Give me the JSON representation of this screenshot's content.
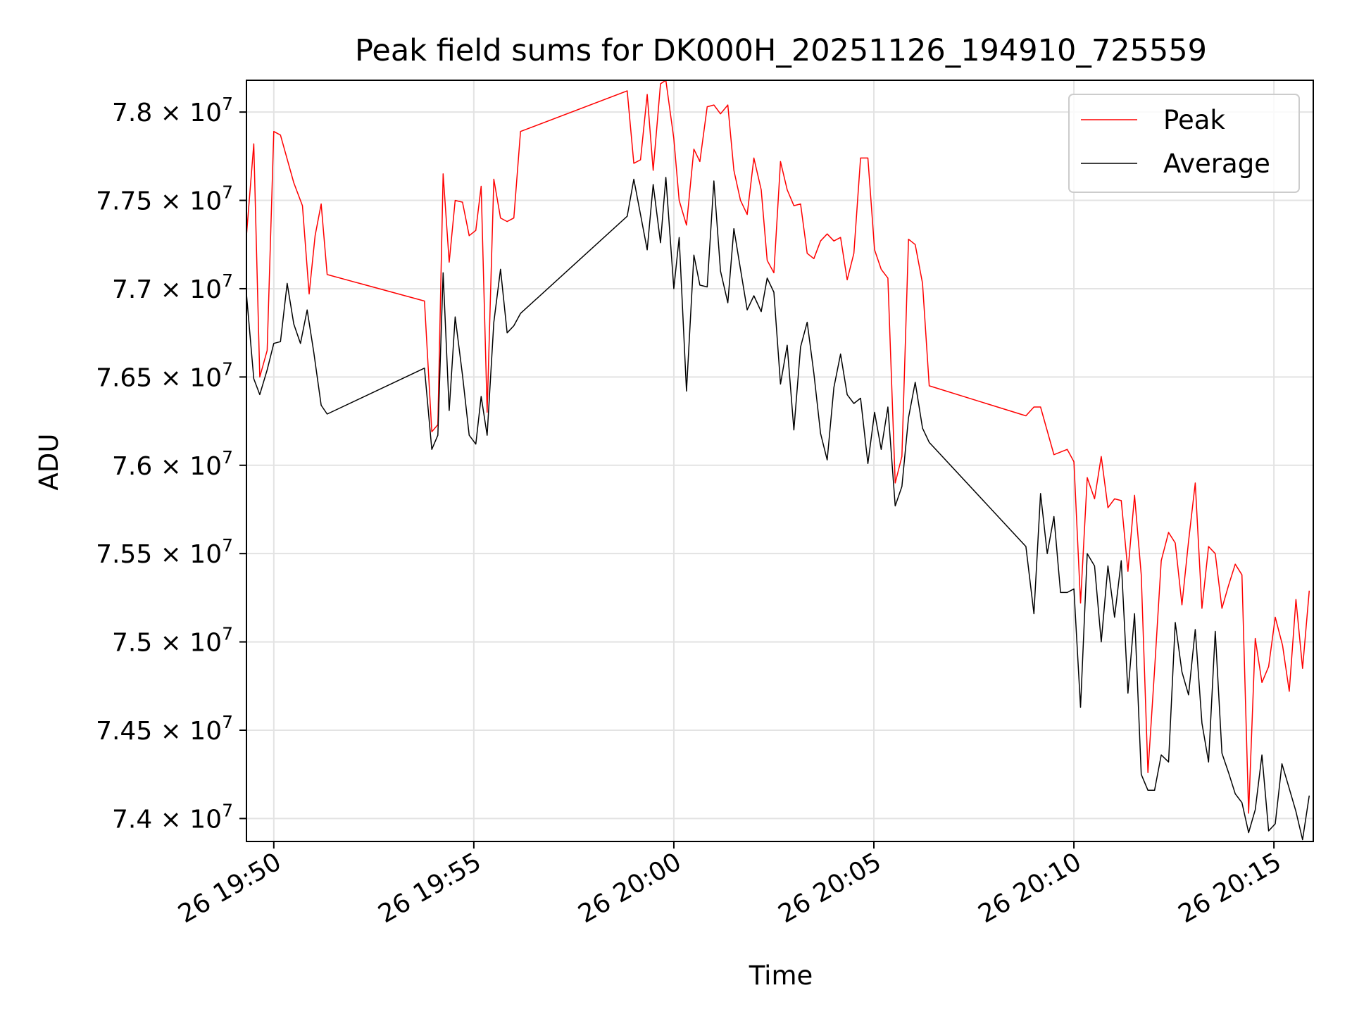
{
  "chart_data": {
    "type": "line",
    "title": "Peak field sums for DK000H_20251126_194910_725559",
    "xlabel": "Time",
    "ylabel": "ADU",
    "x_unit": "time of day (day 26)",
    "xlim": [
      "19:49:19",
      "20:15:59"
    ],
    "ylim": [
      73870000,
      78180000
    ],
    "grid": true,
    "legend_position": "top-right",
    "x_ticks": [
      {
        "t": "19:50:00",
        "label": "26 19:50"
      },
      {
        "t": "19:55:00",
        "label": "26 19:55"
      },
      {
        "t": "20:00:00",
        "label": "26 20:00"
      },
      {
        "t": "20:05:00",
        "label": "26 20:05"
      },
      {
        "t": "20:10:00",
        "label": "26 20:10"
      },
      {
        "t": "20:15:00",
        "label": "26 20:15"
      }
    ],
    "y_ticks": [
      {
        "v": 74000000,
        "mant": "7.4",
        "exp": "7"
      },
      {
        "v": 74500000,
        "mant": "7.45",
        "exp": "7"
      },
      {
        "v": 75000000,
        "mant": "7.5",
        "exp": "7"
      },
      {
        "v": 75500000,
        "mant": "7.55",
        "exp": "7"
      },
      {
        "v": 76000000,
        "mant": "7.6",
        "exp": "7"
      },
      {
        "v": 76500000,
        "mant": "7.65",
        "exp": "7"
      },
      {
        "v": 77000000,
        "mant": "7.7",
        "exp": "7"
      },
      {
        "v": 77500000,
        "mant": "7.75",
        "exp": "7"
      },
      {
        "v": 78000000,
        "mant": "7.8",
        "exp": "7"
      }
    ],
    "times_symbol": "×",
    "base": "10",
    "series": [
      {
        "name": "Peak",
        "color": "#ff0000",
        "points": [
          [
            "19:49:19",
            77300000
          ],
          [
            "19:49:30",
            77820000
          ],
          [
            "19:49:39",
            76500000
          ],
          [
            "19:49:50",
            76650000
          ],
          [
            "19:50:00",
            77890000
          ],
          [
            "19:50:10",
            77870000
          ],
          [
            "19:50:30",
            77600000
          ],
          [
            "19:50:43",
            77470000
          ],
          [
            "19:50:53",
            76970000
          ],
          [
            "19:51:02",
            77300000
          ],
          [
            "19:51:11",
            77480000
          ],
          [
            "19:51:20",
            77080000
          ],
          [
            "19:53:46",
            76930000
          ],
          [
            "19:53:57",
            76190000
          ],
          [
            "19:54:06",
            76230000
          ],
          [
            "19:54:14",
            77650000
          ],
          [
            "19:54:23",
            77150000
          ],
          [
            "19:54:32",
            77500000
          ],
          [
            "19:54:43",
            77490000
          ],
          [
            "19:54:53",
            77300000
          ],
          [
            "19:55:03",
            77330000
          ],
          [
            "19:55:11",
            77580000
          ],
          [
            "19:55:20",
            76300000
          ],
          [
            "19:55:30",
            77620000
          ],
          [
            "19:55:40",
            77400000
          ],
          [
            "19:55:50",
            77380000
          ],
          [
            "19:56:00",
            77400000
          ],
          [
            "19:56:10",
            77890000
          ],
          [
            "19:58:50",
            78120000
          ],
          [
            "19:59:00",
            77710000
          ],
          [
            "19:59:10",
            77730000
          ],
          [
            "19:59:20",
            78100000
          ],
          [
            "19:59:29",
            77670000
          ],
          [
            "19:59:40",
            78160000
          ],
          [
            "19:59:48",
            78180000
          ],
          [
            "20:00:00",
            77850000
          ],
          [
            "20:00:08",
            77500000
          ],
          [
            "20:00:19",
            77360000
          ],
          [
            "20:00:30",
            77790000
          ],
          [
            "20:00:39",
            77720000
          ],
          [
            "20:00:50",
            78030000
          ],
          [
            "20:01:00",
            78040000
          ],
          [
            "20:01:10",
            77990000
          ],
          [
            "20:01:21",
            78040000
          ],
          [
            "20:01:30",
            77670000
          ],
          [
            "20:01:40",
            77500000
          ],
          [
            "20:01:50",
            77420000
          ],
          [
            "20:02:00",
            77740000
          ],
          [
            "20:02:11",
            77560000
          ],
          [
            "20:02:20",
            77160000
          ],
          [
            "20:02:30",
            77090000
          ],
          [
            "20:02:40",
            77720000
          ],
          [
            "20:02:50",
            77560000
          ],
          [
            "20:03:00",
            77470000
          ],
          [
            "20:03:10",
            77480000
          ],
          [
            "20:03:20",
            77200000
          ],
          [
            "20:03:30",
            77170000
          ],
          [
            "20:03:40",
            77270000
          ],
          [
            "20:03:50",
            77310000
          ],
          [
            "20:04:00",
            77270000
          ],
          [
            "20:04:10",
            77290000
          ],
          [
            "20:04:20",
            77050000
          ],
          [
            "20:04:30",
            77200000
          ],
          [
            "20:04:40",
            77740000
          ],
          [
            "20:04:51",
            77740000
          ],
          [
            "20:05:01",
            77220000
          ],
          [
            "20:05:11",
            77110000
          ],
          [
            "20:05:21",
            77060000
          ],
          [
            "20:05:32",
            75900000
          ],
          [
            "20:05:42",
            76050000
          ],
          [
            "20:05:52",
            77280000
          ],
          [
            "20:06:02",
            77250000
          ],
          [
            "20:06:13",
            77030000
          ],
          [
            "20:06:23",
            76450000
          ],
          [
            "20:08:48",
            76280000
          ],
          [
            "20:09:00",
            76330000
          ],
          [
            "20:09:10",
            76330000
          ],
          [
            "20:09:30",
            76060000
          ],
          [
            "20:09:50",
            76090000
          ],
          [
            "20:10:00",
            76020000
          ],
          [
            "20:10:10",
            75220000
          ],
          [
            "20:10:20",
            75930000
          ],
          [
            "20:10:31",
            75810000
          ],
          [
            "20:10:41",
            76050000
          ],
          [
            "20:10:51",
            75760000
          ],
          [
            "20:11:01",
            75810000
          ],
          [
            "20:11:11",
            75800000
          ],
          [
            "20:11:21",
            75400000
          ],
          [
            "20:11:31",
            75830000
          ],
          [
            "20:11:41",
            75380000
          ],
          [
            "20:11:51",
            74260000
          ],
          [
            "20:12:01",
            74840000
          ],
          [
            "20:12:11",
            75460000
          ],
          [
            "20:12:22",
            75620000
          ],
          [
            "20:12:32",
            75560000
          ],
          [
            "20:12:42",
            75210000
          ],
          [
            "20:12:52",
            75570000
          ],
          [
            "20:13:02",
            75900000
          ],
          [
            "20:13:12",
            75190000
          ],
          [
            "20:13:22",
            75540000
          ],
          [
            "20:13:32",
            75500000
          ],
          [
            "20:13:42",
            75190000
          ],
          [
            "20:13:52",
            75320000
          ],
          [
            "20:14:02",
            75440000
          ],
          [
            "20:14:12",
            75380000
          ],
          [
            "20:14:22",
            74030000
          ],
          [
            "20:14:32",
            75020000
          ],
          [
            "20:14:42",
            74770000
          ],
          [
            "20:14:52",
            74860000
          ],
          [
            "20:15:02",
            75140000
          ],
          [
            "20:15:13",
            74980000
          ],
          [
            "20:15:23",
            74720000
          ],
          [
            "20:15:33",
            75240000
          ],
          [
            "20:15:43",
            74850000
          ],
          [
            "20:15:53",
            75290000
          ]
        ]
      },
      {
        "name": "Average",
        "color": "#000000",
        "points": [
          [
            "19:49:19",
            76970000
          ],
          [
            "19:49:30",
            76490000
          ],
          [
            "19:49:39",
            76400000
          ],
          [
            "19:49:50",
            76540000
          ],
          [
            "19:50:00",
            76690000
          ],
          [
            "19:50:10",
            76700000
          ],
          [
            "19:50:20",
            77030000
          ],
          [
            "19:50:30",
            76800000
          ],
          [
            "19:50:40",
            76690000
          ],
          [
            "19:50:50",
            76880000
          ],
          [
            "19:51:00",
            76640000
          ],
          [
            "19:51:11",
            76340000
          ],
          [
            "19:51:20",
            76290000
          ],
          [
            "19:53:46",
            76550000
          ],
          [
            "19:53:57",
            76090000
          ],
          [
            "19:54:06",
            76170000
          ],
          [
            "19:54:14",
            77090000
          ],
          [
            "19:54:23",
            76310000
          ],
          [
            "19:54:32",
            76840000
          ],
          [
            "19:54:43",
            76510000
          ],
          [
            "19:54:53",
            76170000
          ],
          [
            "19:55:03",
            76120000
          ],
          [
            "19:55:11",
            76390000
          ],
          [
            "19:55:20",
            76170000
          ],
          [
            "19:55:30",
            76810000
          ],
          [
            "19:55:40",
            77110000
          ],
          [
            "19:55:50",
            76750000
          ],
          [
            "19:56:00",
            76790000
          ],
          [
            "19:56:10",
            76860000
          ],
          [
            "19:58:50",
            77410000
          ],
          [
            "19:59:00",
            77620000
          ],
          [
            "19:59:10",
            77420000
          ],
          [
            "19:59:20",
            77220000
          ],
          [
            "19:59:29",
            77590000
          ],
          [
            "19:59:40",
            77260000
          ],
          [
            "19:59:48",
            77630000
          ],
          [
            "20:00:00",
            77000000
          ],
          [
            "20:00:08",
            77290000
          ],
          [
            "20:00:19",
            76420000
          ],
          [
            "20:00:30",
            77190000
          ],
          [
            "20:00:39",
            77020000
          ],
          [
            "20:00:50",
            77010000
          ],
          [
            "20:01:00",
            77610000
          ],
          [
            "20:01:10",
            77100000
          ],
          [
            "20:01:21",
            76920000
          ],
          [
            "20:01:30",
            77340000
          ],
          [
            "20:01:40",
            77110000
          ],
          [
            "20:01:50",
            76880000
          ],
          [
            "20:02:00",
            76960000
          ],
          [
            "20:02:11",
            76870000
          ],
          [
            "20:02:20",
            77060000
          ],
          [
            "20:02:30",
            76980000
          ],
          [
            "20:02:40",
            76460000
          ],
          [
            "20:02:50",
            76680000
          ],
          [
            "20:03:00",
            76200000
          ],
          [
            "20:03:10",
            76670000
          ],
          [
            "20:03:20",
            76810000
          ],
          [
            "20:03:30",
            76520000
          ],
          [
            "20:03:40",
            76180000
          ],
          [
            "20:03:50",
            76030000
          ],
          [
            "20:04:00",
            76440000
          ],
          [
            "20:04:10",
            76630000
          ],
          [
            "20:04:20",
            76400000
          ],
          [
            "20:04:30",
            76350000
          ],
          [
            "20:04:40",
            76380000
          ],
          [
            "20:04:51",
            76010000
          ],
          [
            "20:05:01",
            76300000
          ],
          [
            "20:05:11",
            76090000
          ],
          [
            "20:05:21",
            76330000
          ],
          [
            "20:05:32",
            75770000
          ],
          [
            "20:05:42",
            75880000
          ],
          [
            "20:05:52",
            76270000
          ],
          [
            "20:06:02",
            76470000
          ],
          [
            "20:06:13",
            76210000
          ],
          [
            "20:06:23",
            76130000
          ],
          [
            "20:08:48",
            75540000
          ],
          [
            "20:09:00",
            75160000
          ],
          [
            "20:09:10",
            75840000
          ],
          [
            "20:09:20",
            75500000
          ],
          [
            "20:09:30",
            75710000
          ],
          [
            "20:09:40",
            75280000
          ],
          [
            "20:09:50",
            75280000
          ],
          [
            "20:10:00",
            75300000
          ],
          [
            "20:10:10",
            74630000
          ],
          [
            "20:10:20",
            75500000
          ],
          [
            "20:10:31",
            75430000
          ],
          [
            "20:10:41",
            75000000
          ],
          [
            "20:10:51",
            75430000
          ],
          [
            "20:11:01",
            75140000
          ],
          [
            "20:11:11",
            75460000
          ],
          [
            "20:11:21",
            74710000
          ],
          [
            "20:11:31",
            75160000
          ],
          [
            "20:11:41",
            74250000
          ],
          [
            "20:11:51",
            74160000
          ],
          [
            "20:12:01",
            74160000
          ],
          [
            "20:12:11",
            74360000
          ],
          [
            "20:12:22",
            74320000
          ],
          [
            "20:12:32",
            75110000
          ],
          [
            "20:12:42",
            74830000
          ],
          [
            "20:12:52",
            74700000
          ],
          [
            "20:13:02",
            75070000
          ],
          [
            "20:13:12",
            74540000
          ],
          [
            "20:13:22",
            74320000
          ],
          [
            "20:13:32",
            75060000
          ],
          [
            "20:13:42",
            74370000
          ],
          [
            "20:13:52",
            74260000
          ],
          [
            "20:14:02",
            74140000
          ],
          [
            "20:14:12",
            74090000
          ],
          [
            "20:14:22",
            73920000
          ],
          [
            "20:14:32",
            74050000
          ],
          [
            "20:14:42",
            74360000
          ],
          [
            "20:14:52",
            73930000
          ],
          [
            "20:15:02",
            73970000
          ],
          [
            "20:15:12",
            74310000
          ],
          [
            "20:15:23",
            74170000
          ],
          [
            "20:15:33",
            74040000
          ],
          [
            "20:15:43",
            73880000
          ],
          [
            "20:15:53",
            74130000
          ]
        ]
      }
    ]
  }
}
